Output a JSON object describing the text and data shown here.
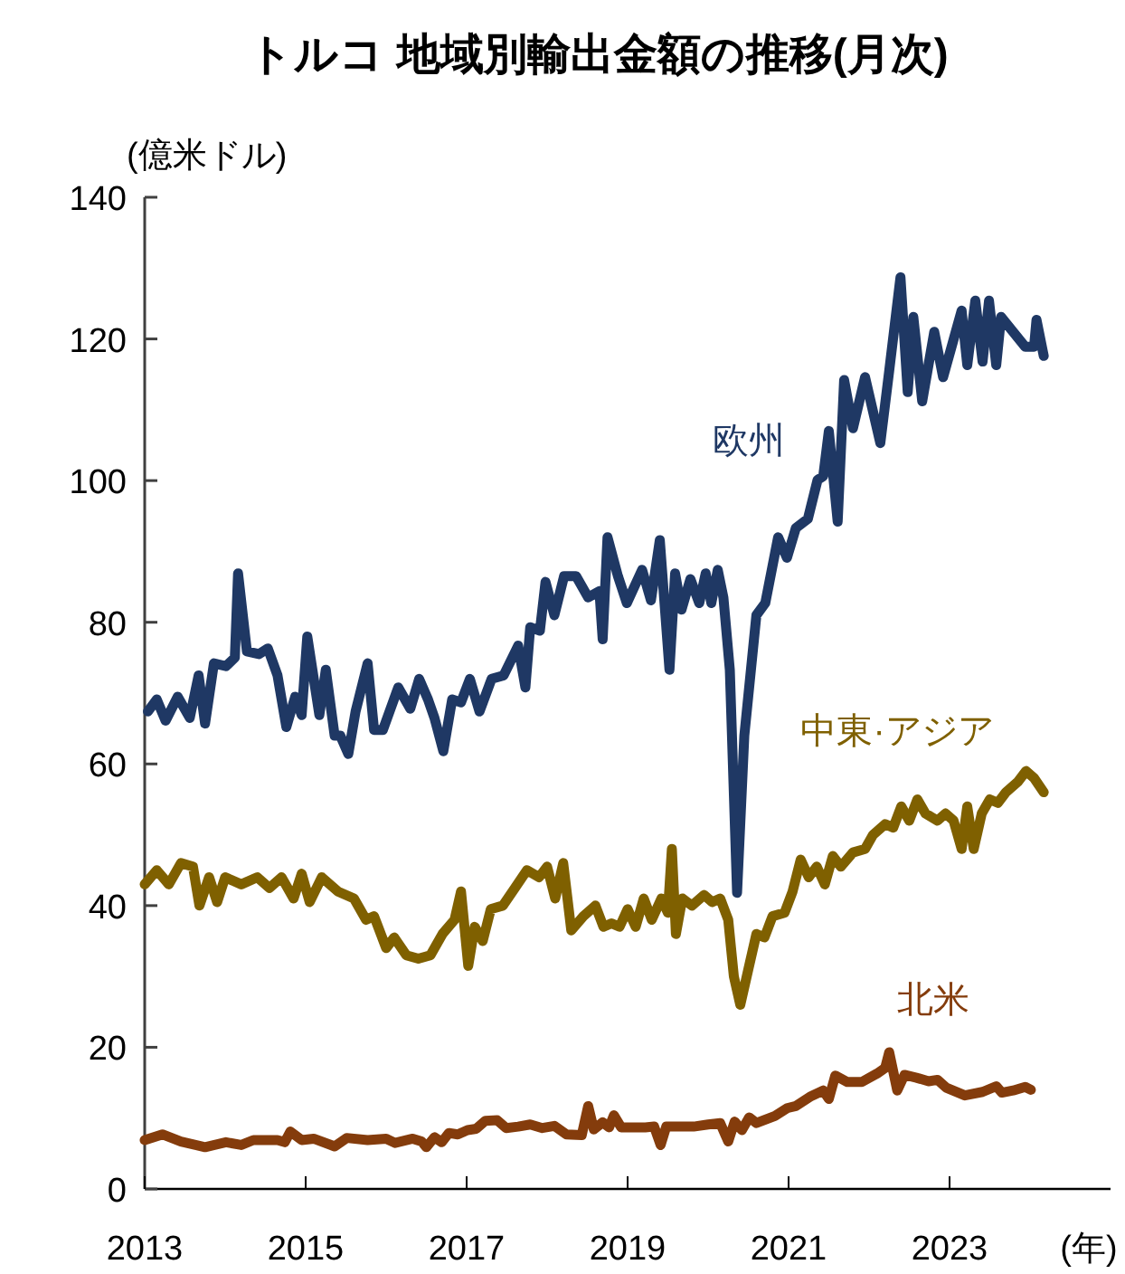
{
  "chart_data": {
    "type": "line",
    "title": "トルコ 地域別輸出金額の推移(月次)",
    "ylabel": "(億米ドル)",
    "xlabel": "(年)",
    "xlim": [
      2013,
      2025
    ],
    "ylim": [
      0,
      140
    ],
    "xticks": [
      2013,
      2015,
      2017,
      2019,
      2021,
      2023
    ],
    "yticks": [
      0,
      20,
      40,
      60,
      80,
      100,
      120,
      140
    ],
    "grid": false,
    "legend": false,
    "series": [
      {
        "name": "欧州",
        "color": "#1f3864",
        "x": [
          2013.04,
          2013.15,
          2013.26,
          2013.41,
          2013.56,
          2013.67,
          2013.75,
          2013.86,
          2014.01,
          2014.12,
          2014.16,
          2014.27,
          2014.42,
          2014.53,
          2014.65,
          2014.76,
          2014.87,
          2014.95,
          2015.02,
          2015.17,
          2015.25,
          2015.36,
          2015.43,
          2015.53,
          2015.62,
          2015.77,
          2015.85,
          2015.96,
          2016.15,
          2016.3,
          2016.41,
          2016.52,
          2016.6,
          2016.71,
          2016.82,
          2016.93,
          2017.04,
          2017.16,
          2017.31,
          2017.46,
          2017.64,
          2017.73,
          2017.79,
          2017.91,
          2017.98,
          2018.09,
          2018.21,
          2018.36,
          2018.51,
          2018.65,
          2018.69,
          2018.75,
          2018.88,
          2018.99,
          2019.18,
          2019.29,
          2019.4,
          2019.52,
          2019.59,
          2019.67,
          2019.78,
          2019.89,
          2019.97,
          2020.04,
          2020.12,
          2020.19,
          2020.27,
          2020.36,
          2020.45,
          2020.6,
          2020.71,
          2020.87,
          2020.98,
          2021.09,
          2021.24,
          2021.36,
          2021.43,
          2021.5,
          2021.61,
          2021.69,
          2021.8,
          2021.95,
          2022.14,
          2022.25,
          2022.39,
          2022.48,
          2022.55,
          2022.66,
          2022.81,
          2022.92,
          2023.15,
          2023.22,
          2023.32,
          2023.41,
          2023.49,
          2023.58,
          2023.64,
          2023.79,
          2023.94,
          2024.05,
          2024.08,
          2024.17
        ],
        "values": [
          67.4,
          69.1,
          66.1,
          69.5,
          66.5,
          72.5,
          65.7,
          74.2,
          73.8,
          75.0,
          86.9,
          75.9,
          75.5,
          76.3,
          72.5,
          65.2,
          69.5,
          66.9,
          78.0,
          66.9,
          73.3,
          64.0,
          64.0,
          61.4,
          67.4,
          74.2,
          64.8,
          64.8,
          70.8,
          67.8,
          72.0,
          69.1,
          66.5,
          61.8,
          69.1,
          68.7,
          72.0,
          67.4,
          72.0,
          72.5,
          76.7,
          70.8,
          79.3,
          78.8,
          85.7,
          81.0,
          86.5,
          86.5,
          83.5,
          84.4,
          77.6,
          92.0,
          86.5,
          82.7,
          87.4,
          83.1,
          91.6,
          73.3,
          86.9,
          81.8,
          86.1,
          82.7,
          86.9,
          82.7,
          87.4,
          83.5,
          73.3,
          41.8,
          64.0,
          81.0,
          82.7,
          92.0,
          89.1,
          93.3,
          94.6,
          100.1,
          100.6,
          107.0,
          94.2,
          114.2,
          107.4,
          114.6,
          105.3,
          115.5,
          128.7,
          112.5,
          123.1,
          111.2,
          121.0,
          114.6,
          124.0,
          116.3,
          125.4,
          116.8,
          125.4,
          116.3,
          123.1,
          121.0,
          118.9,
          118.9,
          122.7,
          117.6
        ]
      },
      {
        "name": "中東·アジア",
        "color": "#7f6000",
        "x": [
          2013.0,
          2013.15,
          2013.3,
          2013.45,
          2013.6,
          2013.68,
          2013.8,
          2013.9,
          2014.0,
          2014.2,
          2014.4,
          2014.55,
          2014.7,
          2014.85,
          2014.95,
          2015.05,
          2015.2,
          2015.4,
          2015.6,
          2015.75,
          2015.85,
          2016.0,
          2016.1,
          2016.25,
          2016.4,
          2016.55,
          2016.7,
          2016.85,
          2016.93,
          2017.02,
          2017.1,
          2017.2,
          2017.3,
          2017.45,
          2017.6,
          2017.75,
          2017.9,
          2018.0,
          2018.1,
          2018.2,
          2018.3,
          2018.45,
          2018.6,
          2018.7,
          2018.8,
          2018.9,
          2019.0,
          2019.1,
          2019.2,
          2019.3,
          2019.42,
          2019.5,
          2019.55,
          2019.6,
          2019.68,
          2019.8,
          2019.95,
          2020.05,
          2020.15,
          2020.25,
          2020.32,
          2020.4,
          2020.5,
          2020.6,
          2020.7,
          2020.8,
          2020.95,
          2021.05,
          2021.15,
          2021.25,
          2021.35,
          2021.45,
          2021.55,
          2021.65,
          2021.8,
          2021.95,
          2022.05,
          2022.2,
          2022.3,
          2022.4,
          2022.5,
          2022.6,
          2022.7,
          2022.85,
          2022.95,
          2023.05,
          2023.15,
          2023.22,
          2023.3,
          2023.4,
          2023.5,
          2023.6,
          2023.7,
          2023.85,
          2023.95,
          2024.05,
          2024.17
        ],
        "values": [
          43,
          45,
          43,
          46,
          45.5,
          40,
          44,
          40.5,
          44,
          43,
          44,
          42.5,
          44,
          41,
          44.5,
          40.5,
          44,
          42,
          41,
          38,
          38.5,
          34,
          35.5,
          33,
          32.5,
          33,
          36,
          38,
          42,
          31.5,
          37,
          35,
          39.5,
          40,
          42.5,
          45,
          44,
          45.5,
          41,
          46,
          36.5,
          38.5,
          40,
          37,
          37.5,
          37,
          39.5,
          37,
          41,
          38,
          41,
          39,
          48,
          36,
          41,
          40,
          41.5,
          40.5,
          41,
          38,
          30,
          26,
          31,
          36,
          35.5,
          38.5,
          39,
          42,
          46.5,
          44,
          45.5,
          43,
          47,
          45.5,
          47.5,
          48,
          50,
          51.5,
          51,
          54,
          52,
          55,
          53,
          52,
          53,
          52,
          48,
          54,
          48,
          53,
          55,
          54.5,
          56,
          57.5,
          59,
          58,
          56
        ]
      },
      {
        "name": "北米",
        "color": "#843c0c",
        "x": [
          2013.0,
          2013.22,
          2013.45,
          2013.75,
          2014.01,
          2014.2,
          2014.35,
          2014.65,
          2014.74,
          2014.81,
          2014.95,
          2015.1,
          2015.36,
          2015.51,
          2015.77,
          2016.0,
          2016.11,
          2016.33,
          2016.44,
          2016.5,
          2016.6,
          2016.69,
          2016.78,
          2016.89,
          2017.01,
          2017.12,
          2017.23,
          2017.38,
          2017.49,
          2017.64,
          2017.79,
          2017.94,
          2018.09,
          2018.24,
          2018.43,
          2018.51,
          2018.58,
          2018.69,
          2018.77,
          2018.83,
          2018.92,
          2019.22,
          2019.33,
          2019.41,
          2019.48,
          2019.82,
          2020.0,
          2020.15,
          2020.25,
          2020.33,
          2020.42,
          2020.51,
          2020.6,
          2020.83,
          2020.98,
          2021.09,
          2021.28,
          2021.43,
          2021.5,
          2021.58,
          2021.73,
          2021.91,
          2022.1,
          2022.2,
          2022.25,
          2022.35,
          2022.44,
          2022.59,
          2022.74,
          2022.85,
          2022.96,
          2023.19,
          2023.41,
          2023.58,
          2023.65,
          2023.79,
          2023.94,
          2024.01
        ],
        "values": [
          6.9,
          7.7,
          6.7,
          5.9,
          6.6,
          6.2,
          6.9,
          6.9,
          6.6,
          8.1,
          6.9,
          7.1,
          6.0,
          7.2,
          6.9,
          7.1,
          6.5,
          7.1,
          6.7,
          5.9,
          7.3,
          6.6,
          7.9,
          7.7,
          8.3,
          8.5,
          9.6,
          9.7,
          8.6,
          8.8,
          9.1,
          8.6,
          8.9,
          7.7,
          7.6,
          11.7,
          8.4,
          9.4,
          8.7,
          10.4,
          8.7,
          8.7,
          8.8,
          6.2,
          8.8,
          8.8,
          9.1,
          9.3,
          6.7,
          9.5,
          8.3,
          10.1,
          9.3,
          10.3,
          11.4,
          11.7,
          13.1,
          13.9,
          12.7,
          16.0,
          15.1,
          15.1,
          16.3,
          17.1,
          19.3,
          13.9,
          16.1,
          15.7,
          15.2,
          15.4,
          14.3,
          13.2,
          13.7,
          14.5,
          13.6,
          13.9,
          14.4,
          14.0
        ]
      }
    ]
  }
}
